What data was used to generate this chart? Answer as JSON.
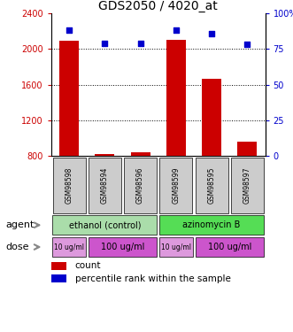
{
  "title": "GDS2050 / 4020_at",
  "samples": [
    "GSM98598",
    "GSM98594",
    "GSM98596",
    "GSM98599",
    "GSM98595",
    "GSM98597"
  ],
  "counts": [
    2090,
    820,
    840,
    2100,
    1670,
    960
  ],
  "percentiles": [
    88,
    79,
    79,
    88,
    86,
    78
  ],
  "ylim_left": [
    800,
    2400
  ],
  "ylim_right": [
    0,
    100
  ],
  "yticks_left": [
    800,
    1200,
    1600,
    2000,
    2400
  ],
  "yticks_right": [
    0,
    25,
    50,
    75,
    100
  ],
  "bar_color": "#cc0000",
  "dot_color": "#0000cc",
  "agent_labels": [
    {
      "label": "ethanol (control)",
      "span": [
        0,
        3
      ],
      "color": "#aaddaa"
    },
    {
      "label": "azinomycin B",
      "span": [
        3,
        6
      ],
      "color": "#55dd55"
    }
  ],
  "dose_labels": [
    {
      "label": "10 ug/ml",
      "span": [
        0,
        1
      ],
      "color": "#dd88dd"
    },
    {
      "label": "100 ug/ml",
      "span": [
        1,
        3
      ],
      "color": "#cc55cc"
    },
    {
      "label": "10 ug/ml",
      "span": [
        3,
        4
      ],
      "color": "#dd88dd"
    },
    {
      "label": "100 ug/ml",
      "span": [
        4,
        6
      ],
      "color": "#cc55cc"
    }
  ],
  "bar_base": 800,
  "sample_box_color": "#cccccc",
  "left_label_color": "#cc0000",
  "right_label_color": "#0000cc",
  "left_arrow_label_agent": "agent",
  "left_arrow_label_dose": "dose",
  "legend_count": "count",
  "legend_pct": "percentile rank within the sample"
}
